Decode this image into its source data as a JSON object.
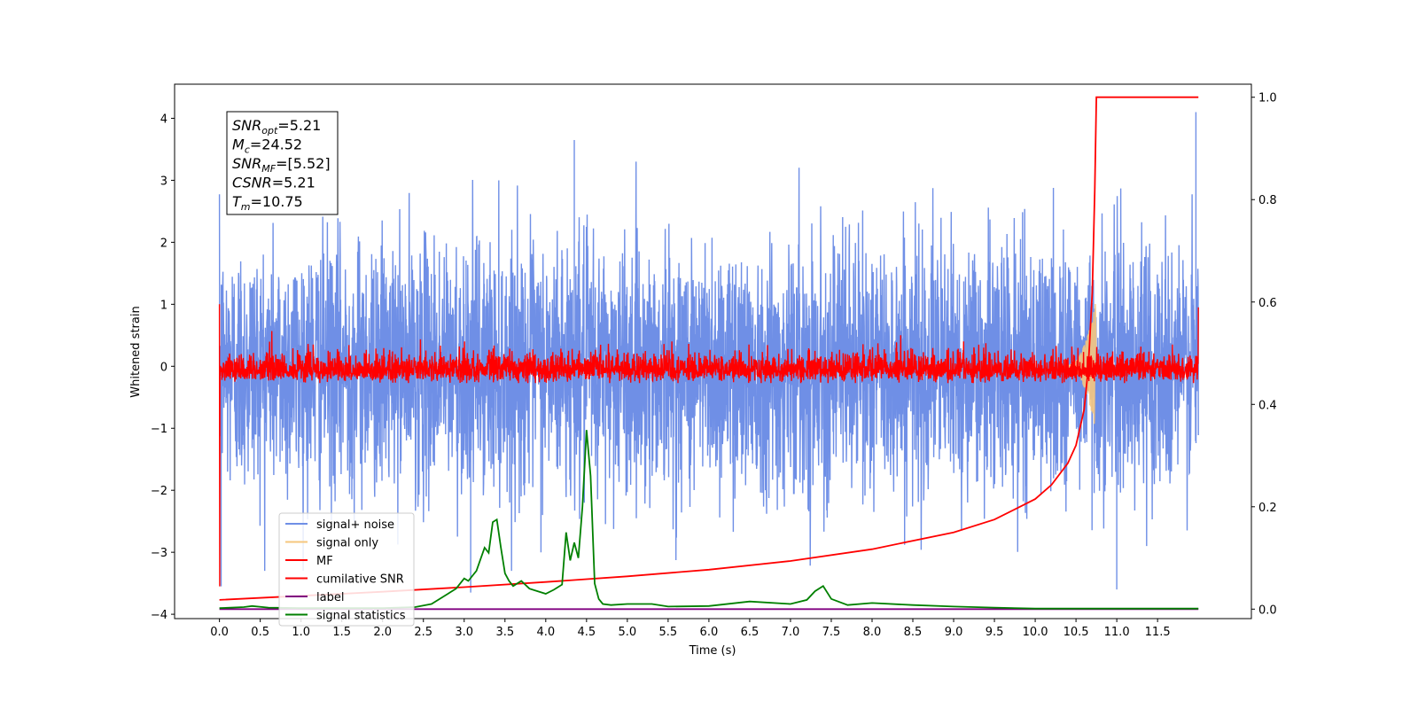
{
  "chart_data": {
    "type": "line",
    "xlabel": "Time (s)",
    "ylabel": "Whitened strain",
    "xlim": [
      -0.55,
      12.65
    ],
    "ylim": [
      -4.07,
      4.55
    ],
    "y2lim": [
      -0.0185,
      1.0255
    ],
    "x_ticks": [
      0.0,
      0.5,
      1.0,
      1.5,
      2.0,
      2.5,
      3.0,
      3.5,
      4.0,
      4.5,
      5.0,
      5.5,
      6.0,
      6.5,
      7.0,
      7.5,
      8.0,
      8.5,
      9.0,
      9.5,
      10.0,
      10.5,
      11.0,
      11.5
    ],
    "x_tick_labels": [
      "0.0",
      "0.5",
      "1.0",
      "1.5",
      "2.0",
      "2.5",
      "3.0",
      "3.5",
      "4.0",
      "4.5",
      "5.0",
      "5.5",
      "6.0",
      "6.5",
      "7.0",
      "7.5",
      "8.0",
      "8.5",
      "9.0",
      "9.5",
      "10.0",
      "10.5",
      "11.0",
      "11.5"
    ],
    "y_ticks": [
      -4,
      -3,
      -2,
      -1,
      0,
      1,
      2,
      3,
      4
    ],
    "y_tick_labels": [
      "−4",
      "−3",
      "−2",
      "−1",
      "0",
      "1",
      "2",
      "3",
      "4"
    ],
    "y2_ticks": [
      0.0,
      0.2,
      0.4,
      0.6,
      0.8,
      1.0
    ],
    "y2_tick_labels": [
      "0.0",
      "0.2",
      "0.4",
      "0.6",
      "0.8",
      "1.0"
    ],
    "legend_placement": "lower-left",
    "series": [
      {
        "name": "signal+ noise",
        "color": "#6f8fe6",
        "axis": "left",
        "kind": "noise",
        "x_range": [
          0.0,
          12.0
        ],
        "sigma": 1.0,
        "spikes": [
          [
            4.35,
            3.65
          ],
          [
            11.97,
            4.1
          ],
          [
            0.02,
            -3.55
          ],
          [
            11.0,
            -3.6
          ],
          [
            3.08,
            -3.65
          ]
        ]
      },
      {
        "name": "signal only",
        "color": "#f5c77e",
        "axis": "left",
        "kind": "chirp",
        "t_merge": 10.75,
        "peak_amplitude": 1.1
      },
      {
        "name": "MF",
        "color": "#ff0000",
        "axis": "left",
        "kind": "noise",
        "x_range": [
          0.0,
          12.0
        ],
        "sigma": 0.12
      },
      {
        "name": "cumilative SNR",
        "color": "#ff0000",
        "axis": "right",
        "x": [
          0.0,
          1.0,
          2.0,
          3.0,
          4.0,
          5.0,
          6.0,
          7.0,
          8.0,
          9.0,
          9.5,
          10.0,
          10.2,
          10.4,
          10.5,
          10.6,
          10.65,
          10.7,
          10.73,
          10.75,
          11.0,
          12.0
        ],
        "y": [
          0.018,
          0.026,
          0.034,
          0.043,
          0.053,
          0.064,
          0.077,
          0.094,
          0.117,
          0.15,
          0.175,
          0.215,
          0.243,
          0.285,
          0.32,
          0.39,
          0.47,
          0.62,
          0.82,
          1.0,
          1.0,
          1.0
        ]
      },
      {
        "name": "label",
        "color": "#800080",
        "axis": "right",
        "x": [
          0.0,
          12.0
        ],
        "y": [
          0.0,
          0.0
        ]
      },
      {
        "name": "signal statistics",
        "color": "#008000",
        "axis": "right",
        "x": [
          0.0,
          0.3,
          0.4,
          0.6,
          1.0,
          2.0,
          2.4,
          2.6,
          2.8,
          2.9,
          3.0,
          3.05,
          3.15,
          3.25,
          3.3,
          3.35,
          3.4,
          3.45,
          3.5,
          3.55,
          3.6,
          3.7,
          3.8,
          3.9,
          4.0,
          4.1,
          4.2,
          4.25,
          4.3,
          4.35,
          4.4,
          4.45,
          4.5,
          4.55,
          4.6,
          4.65,
          4.7,
          4.8,
          5.0,
          5.3,
          5.5,
          6.0,
          6.5,
          7.0,
          7.2,
          7.3,
          7.4,
          7.5,
          7.7,
          8.0,
          8.5,
          9.0,
          9.5,
          10.0,
          12.0
        ],
        "y": [
          0.002,
          0.004,
          0.006,
          0.003,
          0.002,
          0.002,
          0.004,
          0.01,
          0.03,
          0.04,
          0.06,
          0.055,
          0.075,
          0.12,
          0.11,
          0.17,
          0.175,
          0.12,
          0.07,
          0.055,
          0.045,
          0.055,
          0.04,
          0.035,
          0.03,
          0.038,
          0.048,
          0.15,
          0.095,
          0.13,
          0.1,
          0.2,
          0.35,
          0.26,
          0.05,
          0.02,
          0.01,
          0.008,
          0.01,
          0.01,
          0.005,
          0.006,
          0.015,
          0.01,
          0.018,
          0.035,
          0.045,
          0.02,
          0.008,
          0.012,
          0.008,
          0.005,
          0.003,
          0.001,
          0.001
        ]
      }
    ],
    "annotation": {
      "lines": [
        {
          "base": "SNR",
          "sub": "opt",
          "value": "=5.21"
        },
        {
          "base": "M",
          "sub": "c",
          "value": "=24.52"
        },
        {
          "base": "SNR",
          "sub": "MF",
          "value": "=[5.52]"
        },
        {
          "base": "CSNR",
          "sub": "",
          "value": "=5.21"
        },
        {
          "base": "T",
          "sub": "m",
          "value": "=10.75"
        }
      ]
    }
  }
}
